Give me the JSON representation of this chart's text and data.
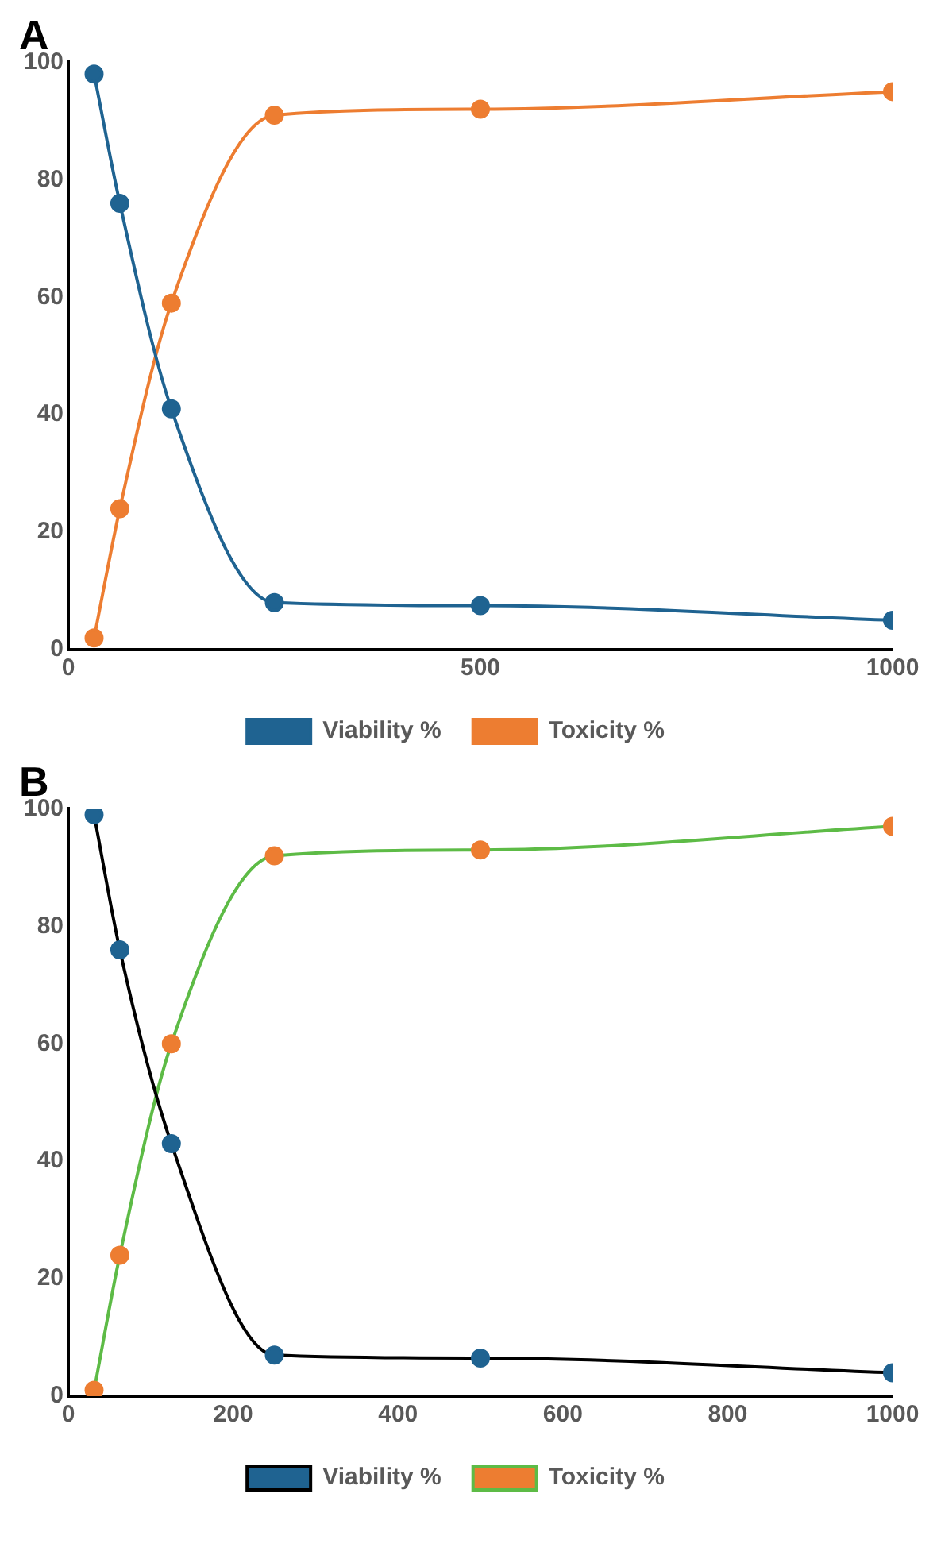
{
  "chart_data": [
    {
      "type": "line",
      "title": "A",
      "x": [
        31.25,
        62.5,
        125,
        250,
        500,
        1000
      ],
      "xlim": [
        0,
        1000
      ],
      "xticks": [
        0,
        500,
        1000
      ],
      "ylim": [
        0,
        100
      ],
      "yticks": [
        0,
        20,
        40,
        60,
        80,
        100
      ],
      "grid": false,
      "legend": "bottom",
      "marker": "circle",
      "series": [
        {
          "name": "Viability %",
          "color": "#1f6391",
          "values": [
            98,
            76,
            41,
            8,
            7.5,
            5
          ]
        },
        {
          "name": "Toxicity %",
          "color": "#ed7d31",
          "values": [
            2,
            24,
            59,
            91,
            92,
            95
          ]
        }
      ]
    },
    {
      "type": "line",
      "title": "B",
      "x": [
        31.25,
        62.5,
        125,
        250,
        500,
        1000
      ],
      "xlim": [
        0,
        1000
      ],
      "xticks": [
        0,
        200,
        400,
        600,
        800,
        1000
      ],
      "ylim": [
        0,
        100
      ],
      "yticks": [
        0,
        20,
        40,
        60,
        80,
        100
      ],
      "grid": false,
      "legend": "bottom",
      "marker": "circle",
      "series": [
        {
          "name": "Viability %",
          "color": "#000000",
          "colors": [
            "#1f6391",
            "#1f6391",
            "#1f6391",
            "#1f6391",
            "#1f6391",
            "#1f6391"
          ],
          "values": [
            99,
            76,
            43,
            7,
            6.5,
            4
          ]
        },
        {
          "name": "Toxicity %",
          "color": "#5dbb46",
          "colors": [
            "#ed7d31",
            "#ed7d31",
            "#ed7d31",
            "#ed7d31",
            "#ed7d31",
            "#ed7d31"
          ],
          "values": [
            1,
            24,
            60,
            92,
            93,
            97
          ]
        }
      ]
    }
  ]
}
